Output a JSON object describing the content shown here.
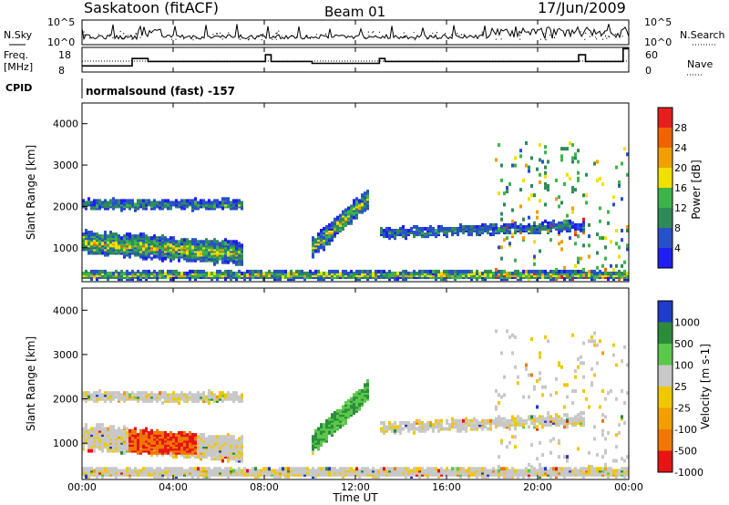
{
  "header": {
    "title": "Saskatoon (fitACF)",
    "beam": "Beam 01",
    "date": "17/Jun/2009"
  },
  "labels": {
    "nsky": "N.Sky",
    "nsky_ticks": [
      "10^5",
      "10^0"
    ],
    "nsearch": "N.Search",
    "freq_line1": "Freq.",
    "freq_line2": "[MHz]",
    "freq_ticks": [
      "18",
      "8"
    ],
    "nave_ticks": [
      "60",
      "0"
    ],
    "nave": "Nave",
    "cpid": "CPID",
    "program": "normalsound (fast) -157"
  },
  "chart_data": [
    {
      "type": "line",
      "name": "noise",
      "ylabel": "N.Sky",
      "scale": "log",
      "yticks": [
        "10^0",
        "10^5"
      ],
      "x_range": [
        "00:00",
        "24:00"
      ]
    },
    {
      "type": "line",
      "name": "frequency",
      "ylabel": "Freq. [MHz]",
      "ylim": [
        8,
        18
      ],
      "secondary_ylabel": "Nave",
      "secondary_ylim": [
        0,
        60
      ],
      "x_hours": [
        0,
        2.2,
        2.9,
        8.05,
        8.3,
        10.1,
        13.05,
        13.3,
        21.8,
        22.1,
        23.75,
        24
      ],
      "freq_mhz": [
        10.5,
        13.5,
        12.3,
        15,
        12.3,
        11.5,
        13.5,
        12.3,
        15,
        12.3,
        17.5,
        17.5
      ],
      "nave_value": 40
    },
    {
      "type": "heatmap",
      "name": "power",
      "ylabel": "Slant Range [km]",
      "yticks": [
        1000,
        2000,
        3000,
        4000
      ],
      "ylim": [
        180,
        4500
      ],
      "colorbar_label": "Power [dB]",
      "colorbar_ticks": [
        4,
        8,
        12,
        16,
        20,
        24,
        28
      ],
      "colors": [
        "#1e1ef0",
        "#2850c8",
        "#2e8b57",
        "#3cb44b",
        "#f0e000",
        "#f0a000",
        "#f06400",
        "#e61e1e"
      ]
    },
    {
      "type": "heatmap",
      "name": "velocity",
      "ylabel": "Slant Range [km]",
      "yticks": [
        1000,
        2000,
        3000,
        4000
      ],
      "ylim": [
        180,
        4500
      ],
      "colorbar_label": "Velocity [m s-1]",
      "colorbar_ticks": [
        "1000",
        "500",
        "100",
        "25",
        "-25",
        "-100",
        "-500",
        "-1000"
      ],
      "colors": [
        "#1e3cc8",
        "#2d8c3c",
        "#5ac84b",
        "#c8c8c8",
        "#f0c800",
        "#f0a000",
        "#f07800",
        "#e61414"
      ]
    }
  ],
  "xaxis": {
    "label": "Time UT",
    "ticks": [
      "00:00",
      "04:00",
      "08:00",
      "12:00",
      "16:00",
      "20:00",
      "00:00"
    ]
  }
}
